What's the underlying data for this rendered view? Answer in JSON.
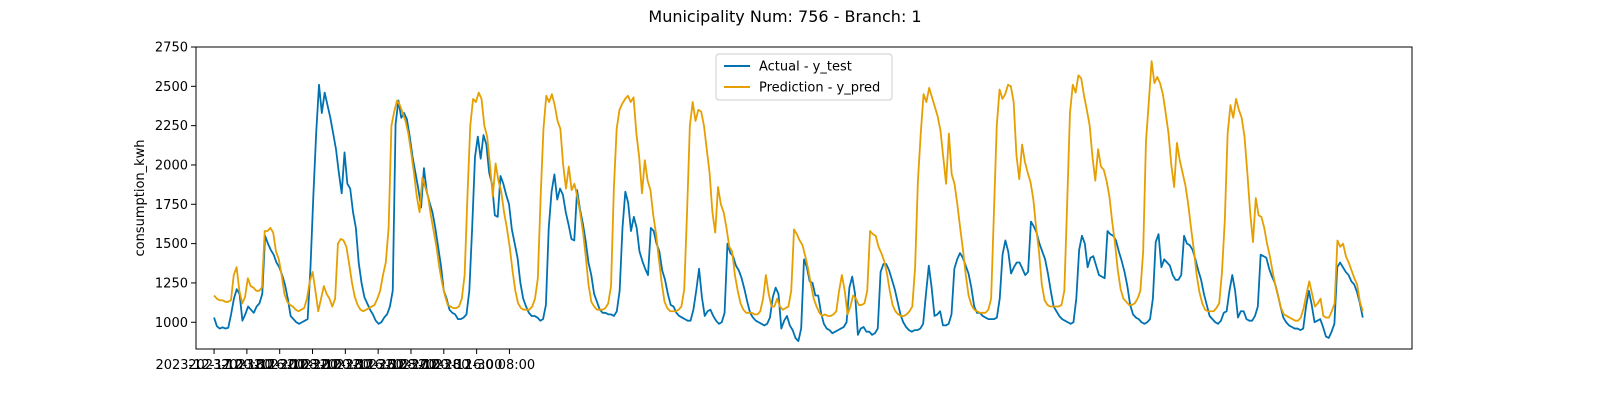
{
  "chart_data": {
    "type": "line",
    "title": "Municipality Num: 756 - Branch: 1",
    "xlabel": "",
    "ylabel": "consumption_kwh",
    "ylim": [
      830,
      2750
    ],
    "yticks": [
      1000,
      1250,
      1500,
      1750,
      2000,
      2250,
      2500,
      2750
    ],
    "xticks": [
      "2023-12-17 00:00",
      "2023-12-18 16:00",
      "2023-12-20 08:00",
      "2023-12-22 00:00",
      "2023-12-23 16:00",
      "2023-12-25 08:00",
      "2023-12-27 00:00",
      "2023-12-28 16:00",
      "2023-12-30 08:00",
      ""
    ],
    "x_start": "2023-12-17 00:00",
    "x_step_hours": 1,
    "xlim_hours": [
      -22,
      1460
    ],
    "grid": false,
    "legend": "top-center",
    "series": [
      {
        "name": "Actual - y_test",
        "color": "#0072B2",
        "y": [
          1030,
          975,
          960,
          968,
          960,
          965,
          1050,
          1150,
          1210,
          1180,
          1010,
          1050,
          1100,
          1080,
          1060,
          1100,
          1120,
          1180,
          1550,
          1500,
          1460,
          1430,
          1380,
          1350,
          1300,
          1240,
          1150,
          1040,
          1020,
          1000,
          990,
          1000,
          1010,
          1020,
          1350,
          1800,
          2200,
          2510,
          2330,
          2460,
          2380,
          2300,
          2200,
          2100,
          1950,
          1820,
          2080,
          1880,
          1850,
          1700,
          1600,
          1380,
          1250,
          1160,
          1120,
          1080,
          1050,
          1010,
          990,
          1000,
          1030,
          1050,
          1100,
          1200,
          2260,
          2410,
          2300,
          2330,
          2290,
          2180,
          2050,
          1950,
          1850,
          1730,
          1980,
          1830,
          1760,
          1700,
          1600,
          1480,
          1360,
          1200,
          1150,
          1080,
          1060,
          1050,
          1020,
          1020,
          1030,
          1050,
          1200,
          1600,
          2050,
          2180,
          2040,
          2190,
          2130,
          1950,
          1880,
          1680,
          1670,
          1930,
          1880,
          1810,
          1750,
          1590,
          1500,
          1410,
          1250,
          1150,
          1100,
          1060,
          1040,
          1040,
          1030,
          1010,
          1020,
          1110,
          1600,
          1830,
          1940,
          1780,
          1850,
          1810,
          1700,
          1620,
          1530,
          1520,
          1840,
          1720,
          1630,
          1520,
          1380,
          1300,
          1180,
          1130,
          1080,
          1060,
          1060,
          1050,
          1050,
          1040,
          1070,
          1200,
          1600,
          1830,
          1760,
          1580,
          1670,
          1600,
          1450,
          1390,
          1340,
          1300,
          1600,
          1580,
          1500,
          1450,
          1330,
          1270,
          1180,
          1110,
          1100,
          1060,
          1040,
          1030,
          1020,
          1010,
          1010,
          1080,
          1200,
          1340,
          1160,
          1040,
          1070,
          1080,
          1040,
          1010,
          990,
          1000,
          1060,
          1500,
          1440,
          1420,
          1360,
          1330,
          1280,
          1210,
          1130,
          1060,
          1030,
          1010,
          1000,
          990,
          980,
          990,
          1030,
          1160,
          1220,
          1180,
          960,
          1010,
          1040,
          980,
          950,
          900,
          880,
          960,
          1400,
          1350,
          1260,
          1250,
          1170,
          1170,
          1060,
          990,
          960,
          950,
          930,
          940,
          950,
          960,
          970,
          1000,
          1220,
          1290,
          1180,
          920,
          960,
          970,
          940,
          940,
          920,
          930,
          960,
          1320,
          1370,
          1370,
          1330,
          1270,
          1210,
          1130,
          1050,
          1000,
          970,
          950,
          940,
          950,
          950,
          960,
          990,
          1180,
          1360,
          1220,
          1040,
          1050,
          1070,
          980,
          980,
          990,
          1050,
          1340,
          1400,
          1440,
          1410,
          1360,
          1310,
          1220,
          1100,
          1060,
          1060,
          1040,
          1030,
          1020,
          1020,
          1020,
          1030,
          1150,
          1430,
          1520,
          1450,
          1310,
          1350,
          1380,
          1380,
          1340,
          1300,
          1320,
          1640,
          1610,
          1570,
          1500,
          1450,
          1400,
          1310,
          1200,
          1100,
          1070,
          1040,
          1020,
          1010,
          1000,
          990,
          1000,
          1150,
          1460,
          1550,
          1500,
          1350,
          1410,
          1420,
          1360,
          1300,
          1290,
          1280,
          1580,
          1560,
          1550,
          1520,
          1450,
          1390,
          1320,
          1230,
          1110,
          1050,
          1030,
          1020,
          1000,
          990,
          1000,
          1020,
          1150,
          1510,
          1560,
          1350,
          1400,
          1380,
          1360,
          1300,
          1270,
          1270,
          1300,
          1550,
          1500,
          1490,
          1460,
          1400,
          1330,
          1270,
          1180,
          1110,
          1040,
          1020,
          1000,
          990,
          1010,
          1060,
          1070,
          1200,
          1300,
          1200,
          1030,
          1070,
          1070,
          1020,
          1010,
          1010,
          1040,
          1100,
          1430,
          1420,
          1410,
          1340,
          1290,
          1250,
          1180,
          1100,
          1030,
          1000,
          980,
          970,
          960,
          960,
          950,
          960,
          1100,
          1200,
          1110,
          1000,
          1010,
          1020,
          970,
          910,
          900,
          940,
          990,
          1350,
          1380,
          1350,
          1320,
          1300,
          1260,
          1240,
          1190,
          1120,
          1030
        ]
      },
      {
        "name": "Prediction - y_pred",
        "color": "#E69F00",
        "y": [
          1170,
          1150,
          1140,
          1140,
          1130,
          1130,
          1140,
          1300,
          1350,
          1200,
          1120,
          1160,
          1280,
          1230,
          1220,
          1200,
          1200,
          1220,
          1580,
          1580,
          1600,
          1570,
          1450,
          1400,
          1300,
          1180,
          1130,
          1110,
          1100,
          1080,
          1070,
          1080,
          1090,
          1150,
          1260,
          1320,
          1200,
          1070,
          1150,
          1230,
          1180,
          1150,
          1100,
          1150,
          1500,
          1530,
          1520,
          1480,
          1370,
          1250,
          1160,
          1110,
          1080,
          1070,
          1080,
          1090,
          1100,
          1110,
          1150,
          1200,
          1300,
          1380,
          1600,
          2250,
          2340,
          2410,
          2380,
          2330,
          2280,
          2200,
          2080,
          1950,
          1800,
          1700,
          1920,
          1860,
          1800,
          1680,
          1580,
          1480,
          1350,
          1250,
          1170,
          1110,
          1100,
          1090,
          1090,
          1100,
          1150,
          1300,
          1800,
          2250,
          2420,
          2400,
          2460,
          2420,
          2250,
          2180,
          2000,
          1800,
          2010,
          1900,
          1830,
          1700,
          1600,
          1480,
          1330,
          1200,
          1120,
          1090,
          1080,
          1080,
          1080,
          1100,
          1150,
          1280,
          1800,
          2230,
          2440,
          2400,
          2450,
          2380,
          2280,
          2230,
          2000,
          1850,
          1990,
          1840,
          1880,
          1800,
          1700,
          1580,
          1420,
          1240,
          1130,
          1100,
          1080,
          1080,
          1080,
          1090,
          1120,
          1230,
          1850,
          2230,
          2350,
          2390,
          2420,
          2440,
          2400,
          2430,
          2200,
          2050,
          1820,
          2030,
          1900,
          1840,
          1680,
          1560,
          1400,
          1250,
          1130,
          1090,
          1070,
          1070,
          1070,
          1080,
          1100,
          1210,
          1700,
          2250,
          2400,
          2280,
          2350,
          2340,
          2250,
          2100,
          1950,
          1700,
          1570,
          1860,
          1750,
          1700,
          1600,
          1480,
          1450,
          1300,
          1200,
          1120,
          1080,
          1060,
          1060,
          1060,
          1050,
          1050,
          1070,
          1150,
          1300,
          1180,
          1100,
          1100,
          1150,
          1100,
          1080,
          1090,
          1100,
          1200,
          1590,
          1560,
          1520,
          1490,
          1420,
          1340,
          1240,
          1150,
          1100,
          1060,
          1040,
          1050,
          1040,
          1040,
          1050,
          1070,
          1200,
          1300,
          1200,
          1050,
          1100,
          1170,
          1150,
          1110,
          1110,
          1120,
          1200,
          1580,
          1560,
          1550,
          1480,
          1440,
          1390,
          1310,
          1200,
          1110,
          1070,
          1050,
          1040,
          1040,
          1050,
          1070,
          1100,
          1350,
          1900,
          2200,
          2450,
          2400,
          2490,
          2430,
          2370,
          2310,
          2220,
          2050,
          1880,
          2200,
          1940,
          1880,
          1750,
          1600,
          1460,
          1300,
          1170,
          1110,
          1080,
          1070,
          1060,
          1060,
          1060,
          1080,
          1150,
          1700,
          2250,
          2480,
          2420,
          2450,
          2510,
          2500,
          2400,
          2060,
          1910,
          2130,
          2020,
          1950,
          1890,
          1780,
          1600,
          1450,
          1240,
          1140,
          1110,
          1100,
          1100,
          1100,
          1100,
          1110,
          1200,
          1750,
          2330,
          2510,
          2460,
          2570,
          2550,
          2440,
          2350,
          2250,
          2050,
          1900,
          2100,
          1990,
          1970,
          1900,
          1800,
          1640,
          1500,
          1330,
          1210,
          1150,
          1130,
          1110,
          1110,
          1120,
          1150,
          1200,
          1450,
          2150,
          2400,
          2660,
          2520,
          2560,
          2520,
          2450,
          2330,
          2200,
          2000,
          1860,
          2140,
          2030,
          1950,
          1870,
          1750,
          1600,
          1460,
          1300,
          1190,
          1120,
          1080,
          1070,
          1070,
          1070,
          1090,
          1120,
          1320,
          1650,
          2200,
          2380,
          2300,
          2420,
          2350,
          2300,
          2180,
          1950,
          1700,
          1510,
          1790,
          1680,
          1670,
          1600,
          1500,
          1420,
          1320,
          1230,
          1160,
          1090,
          1050,
          1040,
          1030,
          1020,
          1010,
          1010,
          1030,
          1090,
          1180,
          1260,
          1180,
          1100,
          1120,
          1150,
          1040,
          1030,
          1030,
          1070,
          1120,
          1520,
          1480,
          1500,
          1420,
          1380,
          1330,
          1280,
          1240,
          1130,
          1070
        ]
      }
    ]
  }
}
